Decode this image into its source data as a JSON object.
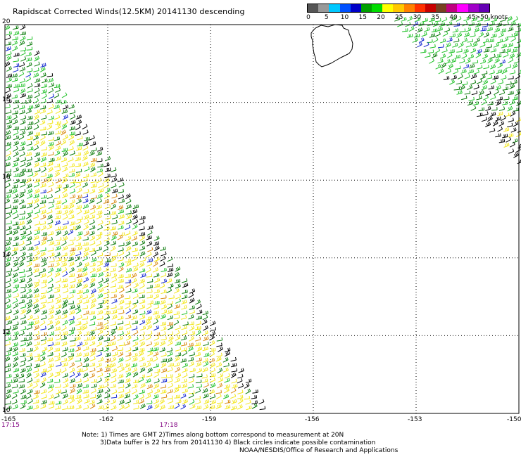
{
  "title": "Rapidscat Corrected Winds(12.5KM) 20141130 descending",
  "colorbar": {
    "unit": ">50 knots",
    "ticks": [
      "0",
      "5",
      "10",
      "15",
      "20",
      "25",
      "30",
      "35",
      "40",
      "45"
    ],
    "colors": [
      "#555555",
      "#999999",
      "#00c8ff",
      "#0050ff",
      "#0000c8",
      "#00a000",
      "#00dc00",
      "#ffff00",
      "#ffc800",
      "#ff8000",
      "#ff3000",
      "#c80000",
      "#784020",
      "#c00080",
      "#ff00ff",
      "#a000c8",
      "#6400b4"
    ]
  },
  "map": {
    "lat_labels": [
      "20",
      "18",
      "16",
      "14",
      "12",
      "10"
    ],
    "lon_labels": [
      "-165",
      "-162",
      "-159",
      "-156",
      "-153",
      "-150"
    ],
    "lat_range": [
      10,
      20
    ],
    "lon_range": [
      -165,
      -150
    ],
    "grid": "dotted",
    "land": "Hawaii (Big Island)",
    "wind_colors": {
      "light_green": "#22c22a",
      "dark_green": "#0a7a0a",
      "yellow": "#f2e61a",
      "black": "#000000",
      "blue": "#1428d0",
      "orange": "#d88a10"
    }
  },
  "times": [
    {
      "label": "17:15",
      "lon": -165
    },
    {
      "label": "17:18",
      "lon": -160.2
    }
  ],
  "notes": {
    "line1": "Note: 1) Times are GMT 2)Times along bottom correspond to measurement at 20N",
    "line2": "3)Data buffer is 22 hrs from 20141130 4) Black circles indicate possible contamination",
    "line3": "NOAA/NESDIS/Office of Research and Applications"
  }
}
